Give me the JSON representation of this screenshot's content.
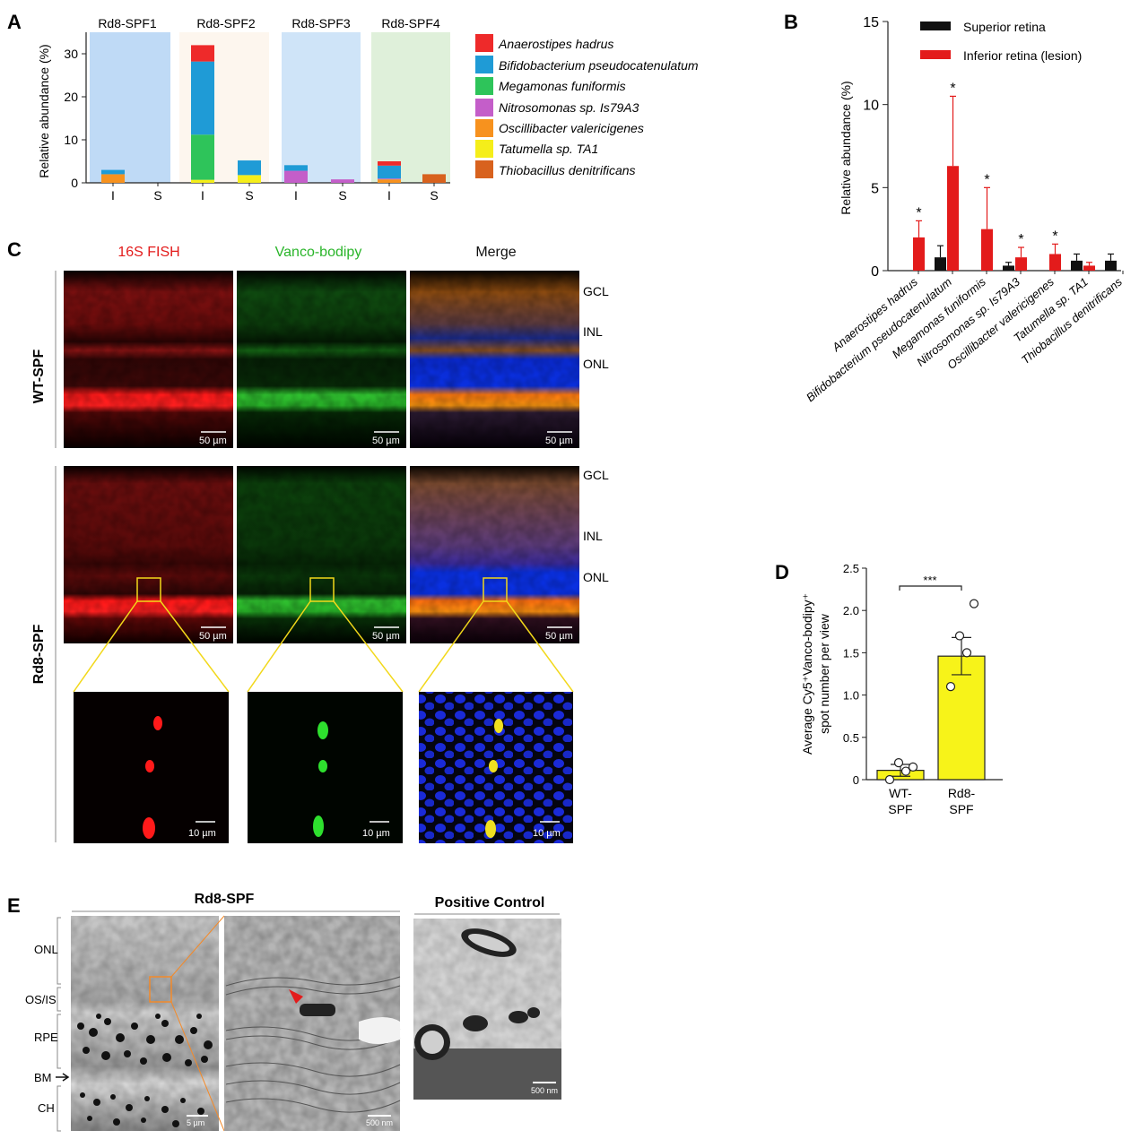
{
  "figure": {
    "panels": {
      "A": {
        "label": "A",
        "ylabel": "Relative abundance (%)",
        "yticks": [
          "0",
          "10",
          "20",
          "30"
        ],
        "groups": [
          "Rd8-SPF1",
          "Rd8-SPF2",
          "Rd8-SPF3",
          "Rd8-SPF4"
        ],
        "bar_labels": [
          "I",
          "S",
          "I",
          "S",
          "I",
          "S",
          "I",
          "S"
        ],
        "legend": [
          {
            "name": "Anaerostipes hadrus",
            "color": "#ee2a2a"
          },
          {
            "name": "Bifidobacterium pseudocatenulatum",
            "color": "#1f9bd6"
          },
          {
            "name": "Megamonas funiformis",
            "color": "#2ec45a"
          },
          {
            "name": "Nitrosomonas sp. Is79A3",
            "color": "#c45ec9"
          },
          {
            "name": "Oscillibacter valericigenes",
            "color": "#f7921e"
          },
          {
            "name": "Tatumella sp. TA1",
            "color": "#f5ee1a"
          },
          {
            "name": "Thiobacillus denitrificans",
            "color": "#d8621e"
          }
        ]
      },
      "B": {
        "label": "B",
        "ylabel": "Relative abundance (%)",
        "yticks": [
          "0",
          "5",
          "10",
          "15"
        ],
        "legend": [
          "Superior retina",
          "Inferior retina (lesion)"
        ],
        "categories": [
          "Anaerostipes hadrus",
          "Bifidobacterium pseudocatenulatum",
          "Megamonas funiformis",
          "Nitrosomonas sp. Is79A3",
          "Oscillibacter valericigenes",
          "Tatumella sp. TA1",
          "Thiobacillus denitrificans"
        ],
        "star": "*"
      },
      "C": {
        "label": "C",
        "columns": [
          "16S FISH",
          "Vanco-bodipy",
          "Merge"
        ],
        "rows": [
          "WT-SPF",
          "Rd8-SPF"
        ],
        "layers": [
          "GCL",
          "INL",
          "ONL"
        ],
        "scale_50": "50 µm",
        "scale_10": "10 µm"
      },
      "D": {
        "label": "D",
        "ylabel_line1": "Average Cy5⁺Vanco-bodipy⁺",
        "ylabel_line2": "spot number per view",
        "yticks": [
          "0",
          "0.5",
          "1.0",
          "1.5",
          "2.0",
          "2.5"
        ],
        "sig": "***",
        "groups": [
          {
            "line1": "WT-",
            "line2": "SPF"
          },
          {
            "line1": "Rd8-",
            "line2": "SPF"
          }
        ]
      },
      "E": {
        "label": "E",
        "title_left": "Rd8-SPF",
        "title_right": "Positive Control",
        "layers": [
          "ONL",
          "OS/IS",
          "RPE",
          "BM",
          "CH"
        ],
        "scale_5um": "5 µm",
        "scale_500a": "500 nm",
        "scale_500b": "500 nm"
      }
    }
  },
  "chart_data": [
    {
      "type": "bar",
      "title": "Panel A",
      "stacked": true,
      "ylabel": "Relative abundance (%)",
      "ylim": [
        0,
        35
      ],
      "categories": [
        "Rd8-SPF1 I",
        "Rd8-SPF1 S",
        "Rd8-SPF2 I",
        "Rd8-SPF2 S",
        "Rd8-SPF3 I",
        "Rd8-SPF3 S",
        "Rd8-SPF4 I",
        "Rd8-SPF4 S"
      ],
      "series": [
        {
          "name": "Thiobacillus denitrificans",
          "color": "#d8621e",
          "values": [
            0,
            0,
            0,
            0,
            0,
            0,
            0,
            2.0
          ]
        },
        {
          "name": "Oscillibacter valericigenes",
          "color": "#f7921e",
          "values": [
            2.0,
            0,
            0,
            0,
            0,
            0,
            0.8,
            0
          ]
        },
        {
          "name": "Tatumella sp. TA1",
          "color": "#f5ee1a",
          "values": [
            0,
            0,
            0.7,
            1.8,
            0,
            0,
            0,
            0
          ]
        },
        {
          "name": "Nitrosomonas sp. Is79A3",
          "color": "#c45ec9",
          "values": [
            0,
            0,
            0,
            0,
            2.8,
            0.8,
            0.2,
            0
          ]
        },
        {
          "name": "Megamonas funiformis",
          "color": "#2ec45a",
          "values": [
            0,
            0,
            10.5,
            0,
            0,
            0,
            0,
            0
          ]
        },
        {
          "name": "Bifidobacterium pseudocatenulatum",
          "color": "#1f9bd6",
          "values": [
            1.0,
            0,
            17.0,
            3.4,
            1.3,
            0,
            3.0,
            0
          ]
        },
        {
          "name": "Anaerostipes hadrus",
          "color": "#ee2a2a",
          "values": [
            0,
            0,
            3.8,
            0,
            0,
            0,
            1.0,
            0
          ]
        }
      ]
    },
    {
      "type": "bar",
      "title": "Panel B",
      "ylabel": "Relative abundance (%)",
      "ylim": [
        0,
        15
      ],
      "categories": [
        "Anaerostipes hadrus",
        "Bifidobacterium pseudocatenulatum",
        "Megamonas funiformis",
        "Nitrosomonas sp. Is79A3",
        "Oscillibacter valericigenes",
        "Tatumella sp. TA1",
        "Thiobacillus denitrificans"
      ],
      "series": [
        {
          "name": "Superior retina",
          "color": "#111111",
          "values": [
            0,
            0.8,
            0,
            0.3,
            0,
            0.6,
            0.6
          ],
          "error": [
            0,
            0.7,
            0,
            0.2,
            0,
            0.4,
            0.4
          ]
        },
        {
          "name": "Inferior retina (lesion)",
          "color": "#e31b1b",
          "values": [
            2.0,
            6.3,
            2.5,
            0.8,
            1.0,
            0.3,
            0
          ],
          "error": [
            1.0,
            4.2,
            2.5,
            0.6,
            0.6,
            0.2,
            0
          ]
        }
      ],
      "significant": [
        true,
        true,
        true,
        true,
        true,
        false,
        false
      ]
    },
    {
      "type": "bar",
      "title": "Panel D",
      "ylabel": "Average Cy5⁺Vanco-bodipy⁺ spot number per view",
      "ylim": [
        0,
        2.5
      ],
      "categories": [
        "WT-SPF",
        "Rd8-SPF"
      ],
      "values": [
        0.11,
        1.46
      ],
      "error": [
        0.07,
        0.22
      ],
      "points": [
        [
          0.0,
          0.1,
          0.2,
          0.15
        ],
        [
          1.1,
          1.5,
          1.7,
          2.08
        ]
      ],
      "color": "#f7f319"
    }
  ]
}
